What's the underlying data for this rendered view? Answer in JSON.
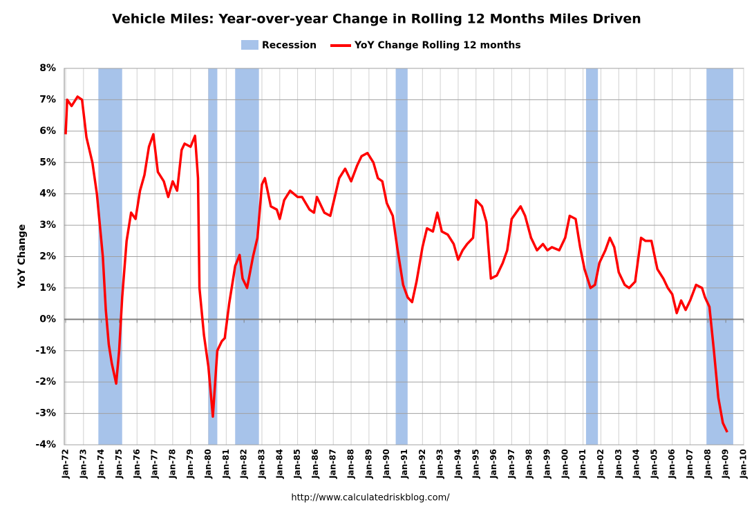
{
  "chart_data": {
    "type": "line",
    "title": "Vehicle Miles: Year-over-year Change in Rolling 12 Months Miles Driven",
    "y_label": "YoY Change",
    "source": "http://www.calculatedriskblog.com/",
    "grid": true,
    "legend": "top",
    "xlim": [
      "1972-01",
      "2010-01"
    ],
    "ylim": [
      -4,
      8
    ],
    "yticks": [
      {
        "value": -4,
        "label": "-4%"
      },
      {
        "value": -3,
        "label": "-3%"
      },
      {
        "value": -2,
        "label": "-2%"
      },
      {
        "value": -1,
        "label": "-1%"
      },
      {
        "value": 0,
        "label": "0%"
      },
      {
        "value": 1,
        "label": "1%"
      },
      {
        "value": 2,
        "label": "2%"
      },
      {
        "value": 3,
        "label": "3%"
      },
      {
        "value": 4,
        "label": "4%"
      },
      {
        "value": 5,
        "label": "5%"
      },
      {
        "value": 6,
        "label": "6%"
      },
      {
        "value": 7,
        "label": "7%"
      },
      {
        "value": 8,
        "label": "8%"
      }
    ],
    "xticks": [
      {
        "value": "1972-01",
        "label": "Jan-72"
      },
      {
        "value": "1973-01",
        "label": "Jan-73"
      },
      {
        "value": "1974-01",
        "label": "Jan-74"
      },
      {
        "value": "1975-01",
        "label": "Jan-75"
      },
      {
        "value": "1976-01",
        "label": "Jan-76"
      },
      {
        "value": "1977-01",
        "label": "Jan-77"
      },
      {
        "value": "1978-01",
        "label": "Jan-78"
      },
      {
        "value": "1979-01",
        "label": "Jan-79"
      },
      {
        "value": "1980-01",
        "label": "Jan-80"
      },
      {
        "value": "1981-01",
        "label": "Jan-81"
      },
      {
        "value": "1982-01",
        "label": "Jan-82"
      },
      {
        "value": "1983-01",
        "label": "Jan-83"
      },
      {
        "value": "1984-01",
        "label": "Jan-84"
      },
      {
        "value": "1985-01",
        "label": "Jan-85"
      },
      {
        "value": "1986-01",
        "label": "Jan-86"
      },
      {
        "value": "1987-01",
        "label": "Jan-87"
      },
      {
        "value": "1988-01",
        "label": "Jan-88"
      },
      {
        "value": "1989-01",
        "label": "Jan-89"
      },
      {
        "value": "1990-01",
        "label": "Jan-90"
      },
      {
        "value": "1991-01",
        "label": "Jan-91"
      },
      {
        "value": "1992-01",
        "label": "Jan-92"
      },
      {
        "value": "1993-01",
        "label": "Jan-93"
      },
      {
        "value": "1994-01",
        "label": "Jan-94"
      },
      {
        "value": "1995-01",
        "label": "Jan-95"
      },
      {
        "value": "1996-01",
        "label": "Jan-96"
      },
      {
        "value": "1997-01",
        "label": "Jan-97"
      },
      {
        "value": "1998-01",
        "label": "Jan-98"
      },
      {
        "value": "1999-01",
        "label": "Jan-99"
      },
      {
        "value": "2000-01",
        "label": "Jan-00"
      },
      {
        "value": "2001-01",
        "label": "Jan-01"
      },
      {
        "value": "2002-01",
        "label": "Jan-02"
      },
      {
        "value": "2003-01",
        "label": "Jan-03"
      },
      {
        "value": "2004-01",
        "label": "Jan-04"
      },
      {
        "value": "2005-01",
        "label": "Jan-05"
      },
      {
        "value": "2006-01",
        "label": "Jan-06"
      },
      {
        "value": "2007-01",
        "label": "Jan-07"
      },
      {
        "value": "2008-01",
        "label": "Jan-08"
      },
      {
        "value": "2009-01",
        "label": "Jan-09"
      },
      {
        "value": "2010-01",
        "label": "Jan-10"
      }
    ],
    "recession": {
      "name": "Recession",
      "color": "#a7c3ea",
      "periods": [
        [
          "1973-11",
          "1975-03"
        ],
        [
          "1980-01",
          "1980-07"
        ],
        [
          "1981-07",
          "1982-11"
        ],
        [
          "1990-07",
          "1991-03"
        ],
        [
          "2001-03",
          "2001-11"
        ],
        [
          "2007-12",
          "2009-06"
        ]
      ]
    },
    "x": [
      "1972-01",
      "1972-02",
      "1972-05",
      "1972-09",
      "1972-12",
      "1973-03",
      "1973-07",
      "1973-10",
      "1974-02",
      "1974-04",
      "1974-06",
      "1974-08",
      "1974-11",
      "1975-01",
      "1975-03",
      "1975-06",
      "1975-09",
      "1975-12",
      "1976-03",
      "1976-06",
      "1976-09",
      "1976-12",
      "1977-03",
      "1977-07",
      "1977-10",
      "1978-01",
      "1978-04",
      "1978-07",
      "1978-09",
      "1979-01",
      "1979-04",
      "1979-06",
      "1979-07",
      "1979-10",
      "1980-01",
      "1980-04",
      "1980-07",
      "1980-10",
      "1980-12",
      "1981-03",
      "1981-07",
      "1981-10",
      "1981-12",
      "1982-03",
      "1982-07",
      "1982-10",
      "1983-01",
      "1983-03",
      "1983-07",
      "1983-11",
      "1984-01",
      "1984-04",
      "1984-08",
      "1985-01",
      "1985-04",
      "1985-09",
      "1985-12",
      "1986-02",
      "1986-07",
      "1986-11",
      "1987-02",
      "1987-05",
      "1987-09",
      "1988-01",
      "1988-05",
      "1988-08",
      "1988-12",
      "1989-04",
      "1989-07",
      "1989-10",
      "1990-01",
      "1990-05",
      "1990-08",
      "1990-12",
      "1991-03",
      "1991-06",
      "1991-09",
      "1992-01",
      "1992-04",
      "1992-08",
      "1992-11",
      "1993-02",
      "1993-06",
      "1993-10",
      "1994-01",
      "1994-04",
      "1994-07",
      "1994-11",
      "1995-01",
      "1995-05",
      "1995-08",
      "1995-11",
      "1996-03",
      "1996-07",
      "1996-10",
      "1997-01",
      "1997-04",
      "1997-07",
      "1997-10",
      "1998-02",
      "1998-06",
      "1998-10",
      "1999-01",
      "1999-04",
      "1999-09",
      "2000-01",
      "2000-04",
      "2000-08",
      "2000-11",
      "2001-02",
      "2001-06",
      "2001-09",
      "2001-12",
      "2002-04",
      "2002-07",
      "2002-10",
      "2003-01",
      "2003-05",
      "2003-08",
      "2003-12",
      "2004-04",
      "2004-07",
      "2004-11",
      "2005-03",
      "2005-07",
      "2005-10",
      "2006-01",
      "2006-04",
      "2006-07",
      "2006-10",
      "2007-01",
      "2007-05",
      "2007-09",
      "2007-11",
      "2008-02",
      "2008-05",
      "2008-08",
      "2008-11",
      "2009-02"
    ],
    "series": [
      {
        "name": "YoY Change Rolling 12 months",
        "color": "#ff0000",
        "values": [
          5.9,
          7.0,
          6.8,
          7.1,
          7.0,
          5.8,
          5.0,
          4.0,
          2.0,
          0.3,
          -0.8,
          -1.4,
          -2.05,
          -1.0,
          0.7,
          2.5,
          3.4,
          3.2,
          4.1,
          4.6,
          5.5,
          5.9,
          4.7,
          4.4,
          3.9,
          4.4,
          4.1,
          5.4,
          5.6,
          5.5,
          5.85,
          4.5,
          1.0,
          -0.5,
          -1.5,
          -3.1,
          -1.0,
          -0.7,
          -0.6,
          0.5,
          1.7,
          2.05,
          1.3,
          1.0,
          2.0,
          2.6,
          4.3,
          4.5,
          3.6,
          3.5,
          3.2,
          3.8,
          4.1,
          3.9,
          3.9,
          3.5,
          3.4,
          3.9,
          3.4,
          3.3,
          3.9,
          4.5,
          4.8,
          4.4,
          4.9,
          5.2,
          5.3,
          5.0,
          4.5,
          4.4,
          3.7,
          3.3,
          2.3,
          1.1,
          0.7,
          0.55,
          1.2,
          2.3,
          2.9,
          2.8,
          3.4,
          2.8,
          2.7,
          2.4,
          1.9,
          2.2,
          2.4,
          2.6,
          3.8,
          3.6,
          3.1,
          1.3,
          1.4,
          1.8,
          2.2,
          3.2,
          3.4,
          3.6,
          3.3,
          2.6,
          2.2,
          2.4,
          2.2,
          2.3,
          2.2,
          2.6,
          3.3,
          3.2,
          2.3,
          1.6,
          1.0,
          1.1,
          1.8,
          2.2,
          2.6,
          2.3,
          1.5,
          1.1,
          1.0,
          1.2,
          2.6,
          2.5,
          2.5,
          1.6,
          1.3,
          1.0,
          0.8,
          0.2,
          0.6,
          0.3,
          0.6,
          1.1,
          1.0,
          0.7,
          0.4,
          -1.0,
          -2.5,
          -3.3,
          -3.6
        ]
      }
    ]
  }
}
